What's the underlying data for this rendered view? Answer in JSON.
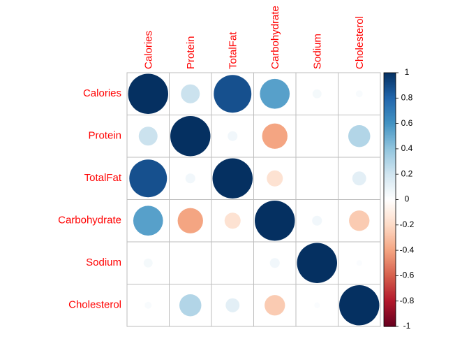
{
  "chart_data": {
    "type": "heatmap",
    "variables": [
      "Calories",
      "Protein",
      "TotalFat",
      "Carbohydrate",
      "Sodium",
      "Cholesterol"
    ],
    "matrix": [
      [
        1.0,
        0.22,
        0.88,
        0.55,
        0.05,
        0.03
      ],
      [
        0.22,
        1.0,
        0.06,
        -0.4,
        0.0,
        0.3
      ],
      [
        0.88,
        0.06,
        1.0,
        -0.16,
        0.0,
        0.12
      ],
      [
        0.55,
        -0.4,
        -0.16,
        1.0,
        0.06,
        -0.26
      ],
      [
        0.05,
        0.0,
        0.0,
        0.06,
        1.0,
        0.02
      ],
      [
        0.03,
        0.3,
        0.12,
        -0.26,
        0.02,
        1.0
      ]
    ],
    "colorbar": {
      "range": [
        -1,
        1
      ],
      "ticks": [
        "1",
        "0.8",
        "0.6",
        "0.4",
        "0.2",
        "0",
        "-0.2",
        "-0.4",
        "-0.6",
        "-0.8",
        "-1"
      ]
    },
    "colors": {
      "labels": "#ff0000",
      "grid": "#bebebe",
      "palette": [
        "#67001f",
        "#b2182b",
        "#d6604d",
        "#f4a582",
        "#fddbc7",
        "#ffffff",
        "#d1e5f0",
        "#92c5de",
        "#4393c3",
        "#2166ac",
        "#053061"
      ]
    }
  }
}
